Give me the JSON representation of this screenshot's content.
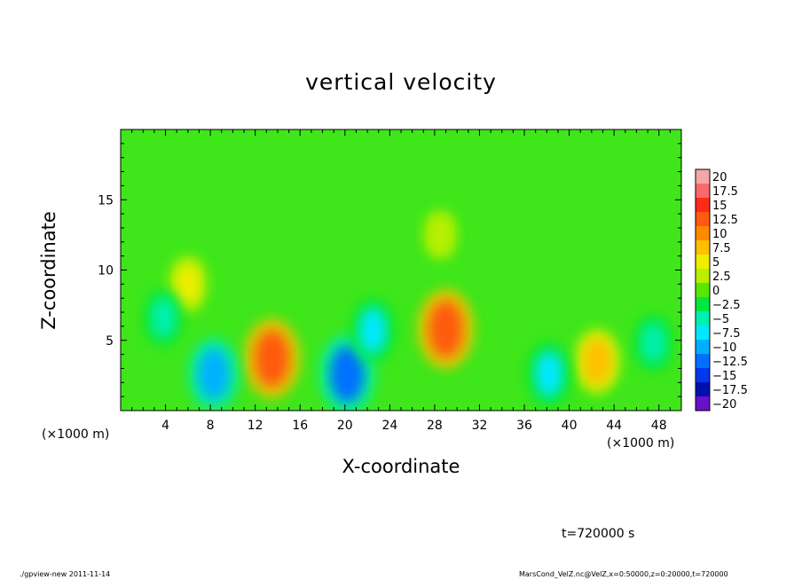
{
  "chart_data": {
    "type": "heatmap",
    "title": "vertical velocity",
    "xlabel": "X-coordinate",
    "ylabel": "Z-coordinate",
    "x_unit_label": "(×1000 m)",
    "xlim": [
      0,
      50
    ],
    "ylim": [
      0,
      20
    ],
    "x_ticks": [
      4,
      8,
      12,
      16,
      20,
      24,
      28,
      32,
      36,
      40,
      44,
      48
    ],
    "y_ticks": [
      5,
      10,
      15
    ],
    "colorbar": {
      "labels": [
        "20",
        "17.5",
        "15",
        "12.5",
        "10",
        "7.5",
        "5",
        "2.5",
        "0",
        "−2.5",
        "−5",
        "−7.5",
        "−10",
        "−12.5",
        "−15",
        "−17.5",
        "−20"
      ],
      "colors": [
        "#f7a6a6",
        "#fb6a6a",
        "#ff2a1a",
        "#ff5a10",
        "#ff8a00",
        "#ffc000",
        "#f0ee00",
        "#b8f000",
        "#58e800",
        "#00e840",
        "#00f0b0",
        "#00e8ff",
        "#00b0ff",
        "#0070ff",
        "#0038f0",
        "#0010b0",
        "#6a10c8"
      ]
    },
    "features": [
      {
        "x": 13.5,
        "z": 3.7,
        "value": 12.5
      },
      {
        "x": 29.0,
        "z": 5.8,
        "value": 12.5
      },
      {
        "x": 42.5,
        "z": 3.5,
        "value": 7.5
      },
      {
        "x": 6.0,
        "z": 9.0,
        "value": 5
      },
      {
        "x": 28.5,
        "z": 12.5,
        "value": 2.5
      },
      {
        "x": 8.3,
        "z": 2.6,
        "value": -10
      },
      {
        "x": 20.2,
        "z": 2.6,
        "value": -12.5
      },
      {
        "x": 22.5,
        "z": 5.7,
        "value": -7.5
      },
      {
        "x": 3.8,
        "z": 6.6,
        "value": -5
      },
      {
        "x": 38.2,
        "z": 2.6,
        "value": -7.5
      },
      {
        "x": 47.5,
        "z": 4.8,
        "value": -5
      }
    ]
  },
  "annotations": {
    "time": "t=720000 s",
    "footer_left": "./gpview-new   2011-11-14",
    "footer_right": "MarsCond_VelZ.nc@VelZ,x=0:50000,z=0:20000,t=720000"
  }
}
